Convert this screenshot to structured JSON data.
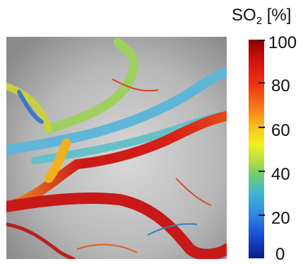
{
  "colorbar": {
    "title_main": "SO",
    "title_sub": "2",
    "title_unit": " [%]",
    "ticks": [
      "100",
      "80",
      "60",
      "40",
      "20",
      "0"
    ]
  }
}
